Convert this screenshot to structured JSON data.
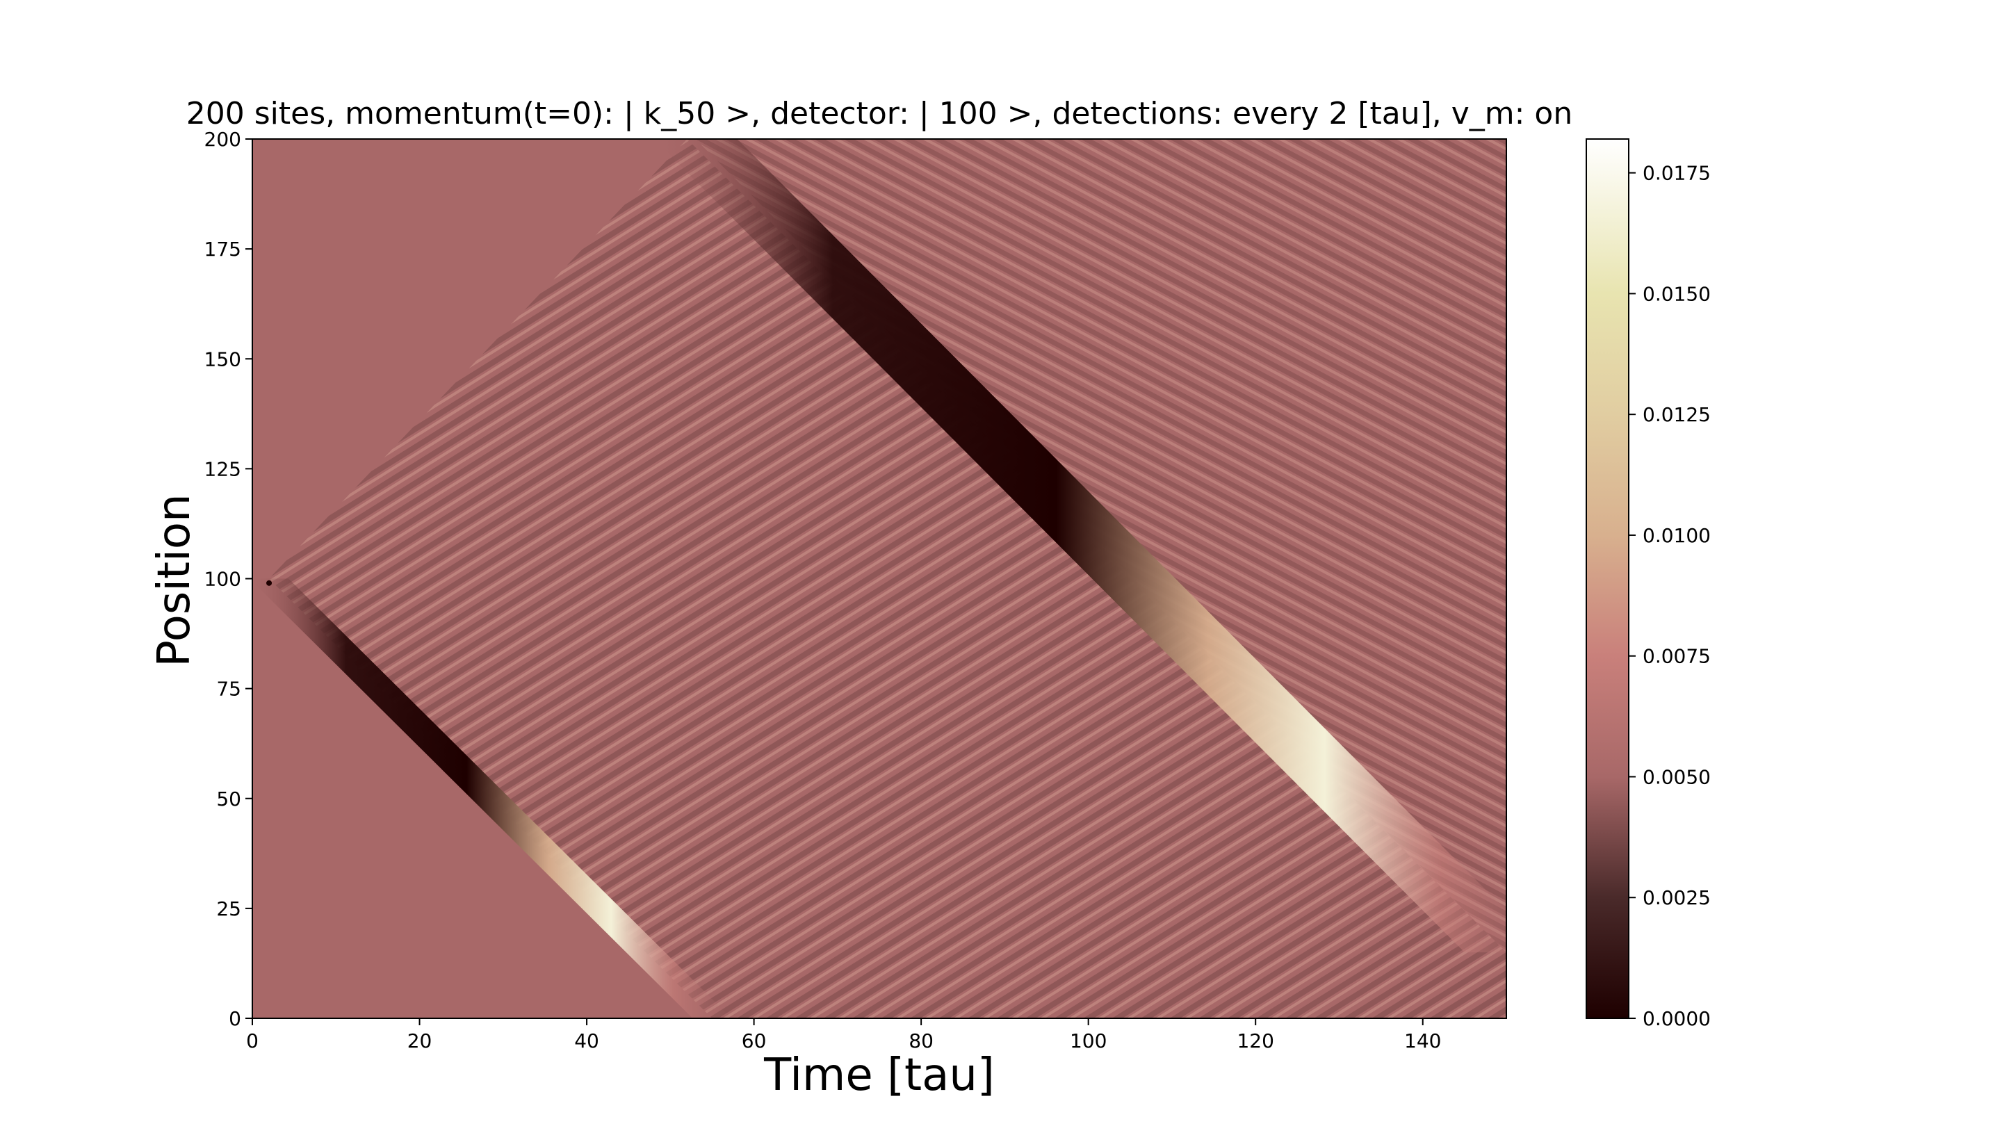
{
  "chart_data": {
    "type": "heatmap",
    "title": "200 sites, momentum(t=0): | k_50 >, detector: | 100 >, detections: every 2 [tau], v_m: on",
    "xlabel": "Time [tau]",
    "ylabel": "Position",
    "xlim": [
      0,
      150
    ],
    "ylim": [
      0,
      200
    ],
    "xticks": [
      0,
      20,
      40,
      60,
      80,
      100,
      120,
      140
    ],
    "yticks": [
      0,
      25,
      50,
      75,
      100,
      125,
      150,
      175,
      200
    ],
    "colorbar": {
      "ticks": [
        "0.0000",
        "0.0025",
        "0.0050",
        "0.0075",
        "0.0100",
        "0.0125",
        "0.0150",
        "0.0175"
      ],
      "tick_values": [
        0.0,
        0.0025,
        0.005,
        0.0075,
        0.01,
        0.0125,
        0.015,
        0.0175
      ],
      "range": [
        0.0,
        0.0182
      ],
      "colormap": "pink",
      "stops": [
        {
          "value": 0.0,
          "color": "#1e0000"
        },
        {
          "value": 0.0025,
          "color": "#4a2a2a"
        },
        {
          "value": 0.005,
          "color": "#a86868"
        },
        {
          "value": 0.0075,
          "color": "#c9807b"
        },
        {
          "value": 0.01,
          "color": "#d8b08e"
        },
        {
          "value": 0.0125,
          "color": "#e1cda1"
        },
        {
          "value": 0.015,
          "color": "#e8e4b0"
        },
        {
          "value": 0.0182,
          "color": "#ffffff"
        }
      ]
    },
    "background_value": 0.005,
    "features": [
      {
        "name": "lower moving peak",
        "start": [
          2,
          100
        ],
        "end": [
          55,
          0
        ],
        "peak_value": 0.0175,
        "trough_value": 0.0
      },
      {
        "name": "upper moving peak",
        "start": [
          53,
          200
        ],
        "end": [
          150,
          15
        ],
        "peak_value": 0.0175,
        "trough_value": 0.0
      },
      {
        "name": "upper interference front",
        "start": [
          2,
          100
        ],
        "end": [
          52,
          200
        ]
      },
      {
        "name": "detector site",
        "t": 2,
        "position": 99
      }
    ]
  }
}
